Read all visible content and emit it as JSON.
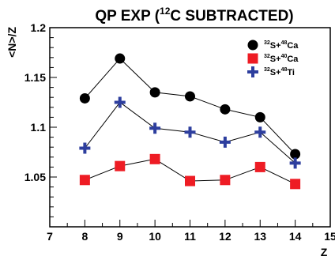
{
  "chart_data": {
    "type": "line",
    "title": {
      "prefix": "QP EXP (",
      "superscript": "12",
      "suffix": "C SUBTRACTED)"
    },
    "xlabel": "Z",
    "ylabel": "<N>/Z",
    "xlim": [
      7,
      15
    ],
    "ylim": [
      1.0,
      1.2
    ],
    "xticks": [
      "7",
      "8",
      "9",
      "10",
      "11",
      "12",
      "13",
      "14",
      "15"
    ],
    "yticks": [
      "1.05",
      "1.1",
      "1.15",
      "1.2"
    ],
    "x": [
      8,
      9,
      10,
      11,
      12,
      13,
      14
    ],
    "series": [
      {
        "name": "32S+48Ca",
        "name_parts": [
          {
            "sup": "32"
          },
          {
            "text": "S+"
          },
          {
            "sup": "48"
          },
          {
            "text": "Ca"
          }
        ],
        "marker": "circle",
        "color": "#000000",
        "values": [
          1.129,
          1.169,
          1.135,
          1.131,
          1.118,
          1.11,
          1.073
        ]
      },
      {
        "name": "32S+40Ca",
        "name_parts": [
          {
            "sup": "32"
          },
          {
            "text": "S+"
          },
          {
            "sup": "40"
          },
          {
            "text": "Ca"
          }
        ],
        "marker": "square",
        "color": "#ee1c24",
        "values": [
          1.047,
          1.061,
          1.068,
          1.046,
          1.047,
          1.06,
          1.043
        ]
      },
      {
        "name": "32S+48Ti",
        "name_parts": [
          {
            "sup": "32"
          },
          {
            "text": "S+"
          },
          {
            "sup": "48"
          },
          {
            "text": "Ti"
          }
        ],
        "marker": "cross",
        "color": "#2d3e9e",
        "values": [
          1.079,
          1.125,
          1.099,
          1.095,
          1.085,
          1.095,
          1.064
        ]
      }
    ],
    "legend_position": "top-right",
    "grid": false
  }
}
